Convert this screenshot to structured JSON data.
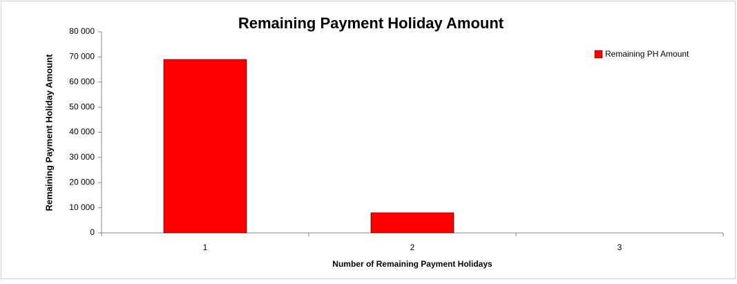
{
  "chart_data": {
    "type": "bar",
    "title": "Remaining Payment Holiday Amount",
    "x_label": "Number of Remaining Payment Holidays",
    "y_label": "Remaining Payment Holiday Amount",
    "categories": [
      "1",
      "2",
      "3"
    ],
    "series": [
      {
        "name": "Remaining PH Amount",
        "color": "#ff0000",
        "values": [
          69000,
          8000,
          0
        ]
      }
    ],
    "ylim": [
      0,
      80000
    ],
    "yticks": [
      0,
      {
        "value": 10000,
        "label": "10 000"
      },
      {
        "value": 20000,
        "label": "20 000"
      },
      {
        "value": 30000,
        "label": "30 000"
      },
      {
        "value": 40000,
        "label": "40 000"
      },
      {
        "value": 50000,
        "label": "50 000"
      },
      {
        "value": 60000,
        "label": "60 000"
      },
      {
        "value": 70000,
        "label": "70 000"
      },
      {
        "value": 80000,
        "label": "80 000"
      }
    ],
    "grid": false,
    "legend": "upper right"
  }
}
